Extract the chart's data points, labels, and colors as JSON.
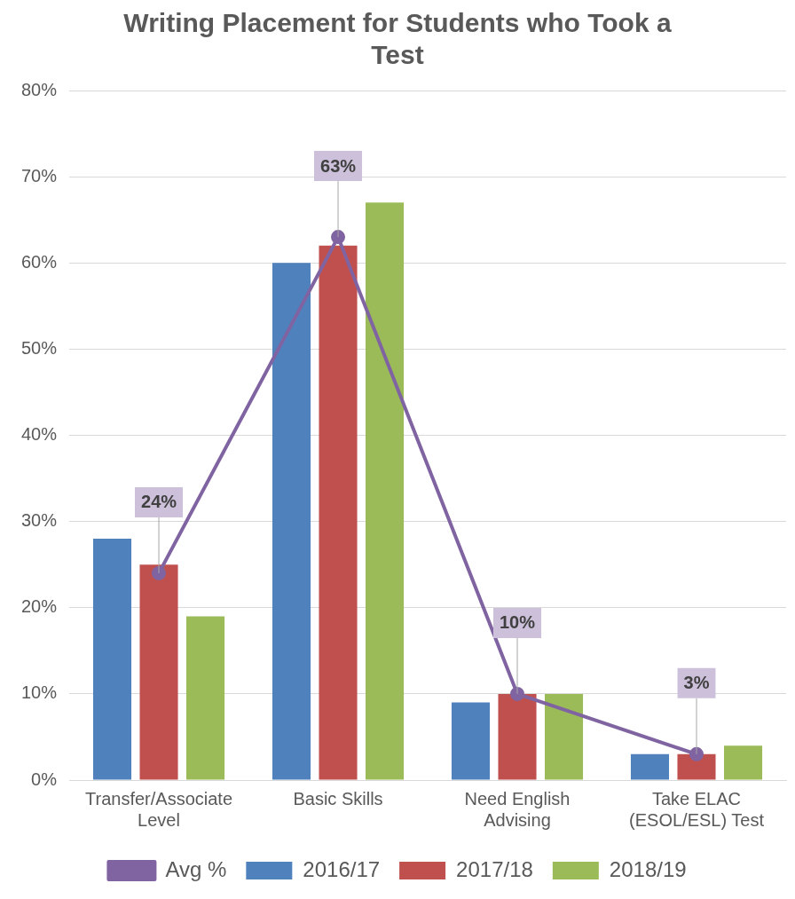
{
  "chart_data": {
    "type": "bar",
    "title": "Writing Placement for Students who Took a Test",
    "categories": [
      "Transfer/Associate Level",
      "Basic Skills",
      "Need English Advising",
      "Take ELAC (ESOL/ESL) Test"
    ],
    "series": [
      {
        "name": "2016/17",
        "color": "#4f81bd",
        "values": [
          28,
          60,
          9,
          3
        ]
      },
      {
        "name": "2017/18",
        "color": "#c0504d",
        "values": [
          25,
          62,
          10,
          3
        ]
      },
      {
        "name": "2018/19",
        "color": "#9bbb59",
        "values": [
          19,
          67,
          10,
          4
        ]
      },
      {
        "name": "Avg %",
        "type": "line",
        "color": "#8064a2",
        "values": [
          24,
          63,
          10,
          3
        ],
        "value_labels": [
          "24%",
          "63%",
          "10%",
          "3%"
        ],
        "marker": "circle",
        "line_style": "solid"
      }
    ],
    "ylim": [
      0,
      80
    ],
    "yticks": [
      {
        "value": 0,
        "label": "0%"
      },
      {
        "value": 10,
        "label": "10%"
      },
      {
        "value": 20,
        "label": "20%"
      },
      {
        "value": 30,
        "label": "30%"
      },
      {
        "value": 40,
        "label": "40%"
      },
      {
        "value": 50,
        "label": "50%"
      },
      {
        "value": 60,
        "label": "60%"
      },
      {
        "value": 70,
        "label": "70%"
      },
      {
        "value": 80,
        "label": "80%"
      }
    ],
    "grid": "y",
    "legend": "bottom"
  }
}
